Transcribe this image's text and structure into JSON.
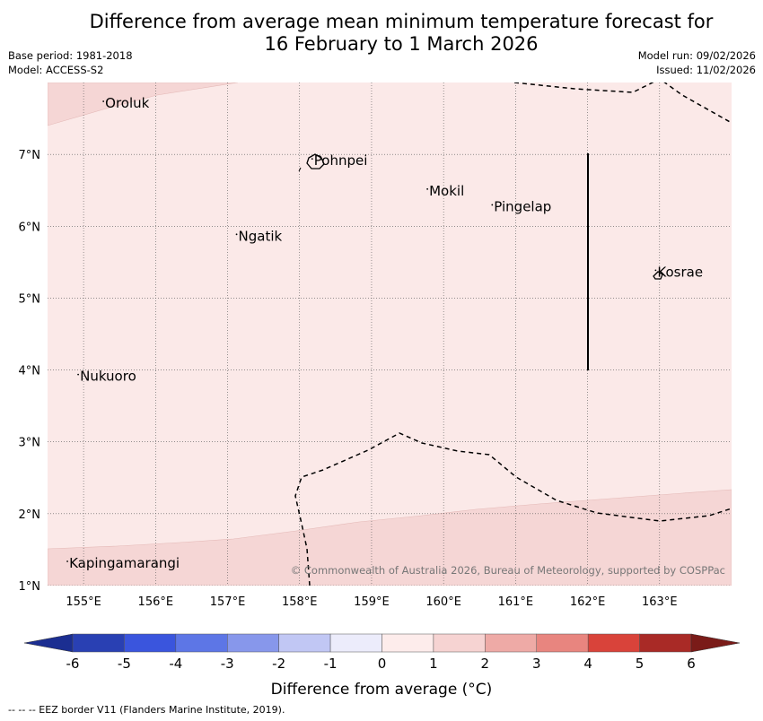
{
  "title_line1": "Difference from average mean minimum temperature forecast for",
  "title_line2": "16 February to 1 March 2026",
  "base_period": "Base period: 1981-2018",
  "model": "Model: ACCESS-S2",
  "model_run": "Model run: 09/02/2026",
  "issued": "Issued: 11/02/2026",
  "map": {
    "lon_range": [
      154.5,
      164.0
    ],
    "lat_range": [
      1.0,
      8.0
    ],
    "lon_ticks": [
      {
        "value": 155,
        "label": "155°E"
      },
      {
        "value": 156,
        "label": "156°E"
      },
      {
        "value": 157,
        "label": "157°E"
      },
      {
        "value": 158,
        "label": "158°E"
      },
      {
        "value": 159,
        "label": "159°E"
      },
      {
        "value": 160,
        "label": "160°E"
      },
      {
        "value": 161,
        "label": "161°E"
      },
      {
        "value": 162,
        "label": "162°E"
      },
      {
        "value": 163,
        "label": "163°E"
      }
    ],
    "lat_ticks": [
      {
        "value": 1,
        "label": "1°N"
      },
      {
        "value": 2,
        "label": "2°N"
      },
      {
        "value": 3,
        "label": "3°N"
      },
      {
        "value": 4,
        "label": "4°N"
      },
      {
        "value": 5,
        "label": "5°N"
      },
      {
        "value": 6,
        "label": "6°N"
      },
      {
        "value": 7,
        "label": "7°N"
      }
    ],
    "places": [
      {
        "name": "Oroluk",
        "lon": 155.3,
        "lat": 7.65
      },
      {
        "name": "Pohnpei",
        "lon": 158.2,
        "lat": 6.85
      },
      {
        "name": "Mokil",
        "lon": 159.8,
        "lat": 6.43
      },
      {
        "name": "Pingelap",
        "lon": 160.7,
        "lat": 6.21
      },
      {
        "name": "Ngatik",
        "lon": 157.15,
        "lat": 5.8
      },
      {
        "name": "Kosrae",
        "lon": 162.97,
        "lat": 5.3
      },
      {
        "name": "Nukuoro",
        "lon": 154.95,
        "lat": 3.85
      },
      {
        "name": "Kapingamarangi",
        "lon": 154.8,
        "lat": 1.25
      }
    ],
    "background_color": "#fbe9e8",
    "warm_shade_color": "#f5d6d5",
    "copyright": "© Commonwealth of Australia 2026, Bureau of Meteorology, supported by COSPPac"
  },
  "legend": {
    "label": "Difference from average (°C)",
    "ticks": [
      "-6",
      "-5",
      "-4",
      "-3",
      "-2",
      "-1",
      "0",
      "1",
      "2",
      "3",
      "4",
      "5",
      "6"
    ],
    "colors": [
      "#1b2e91",
      "#2940b3",
      "#3a55dd",
      "#5d76e6",
      "#8797eb",
      "#c1c7f4",
      "#ececfb",
      "#fdeceb",
      "#f6d3d2",
      "#eeaaa6",
      "#e8857f",
      "#d9433a",
      "#a92a26",
      "#7a1b18"
    ]
  },
  "footer": "--  --  -- EEZ border V11 (Flanders Marine Institute, 2019)."
}
